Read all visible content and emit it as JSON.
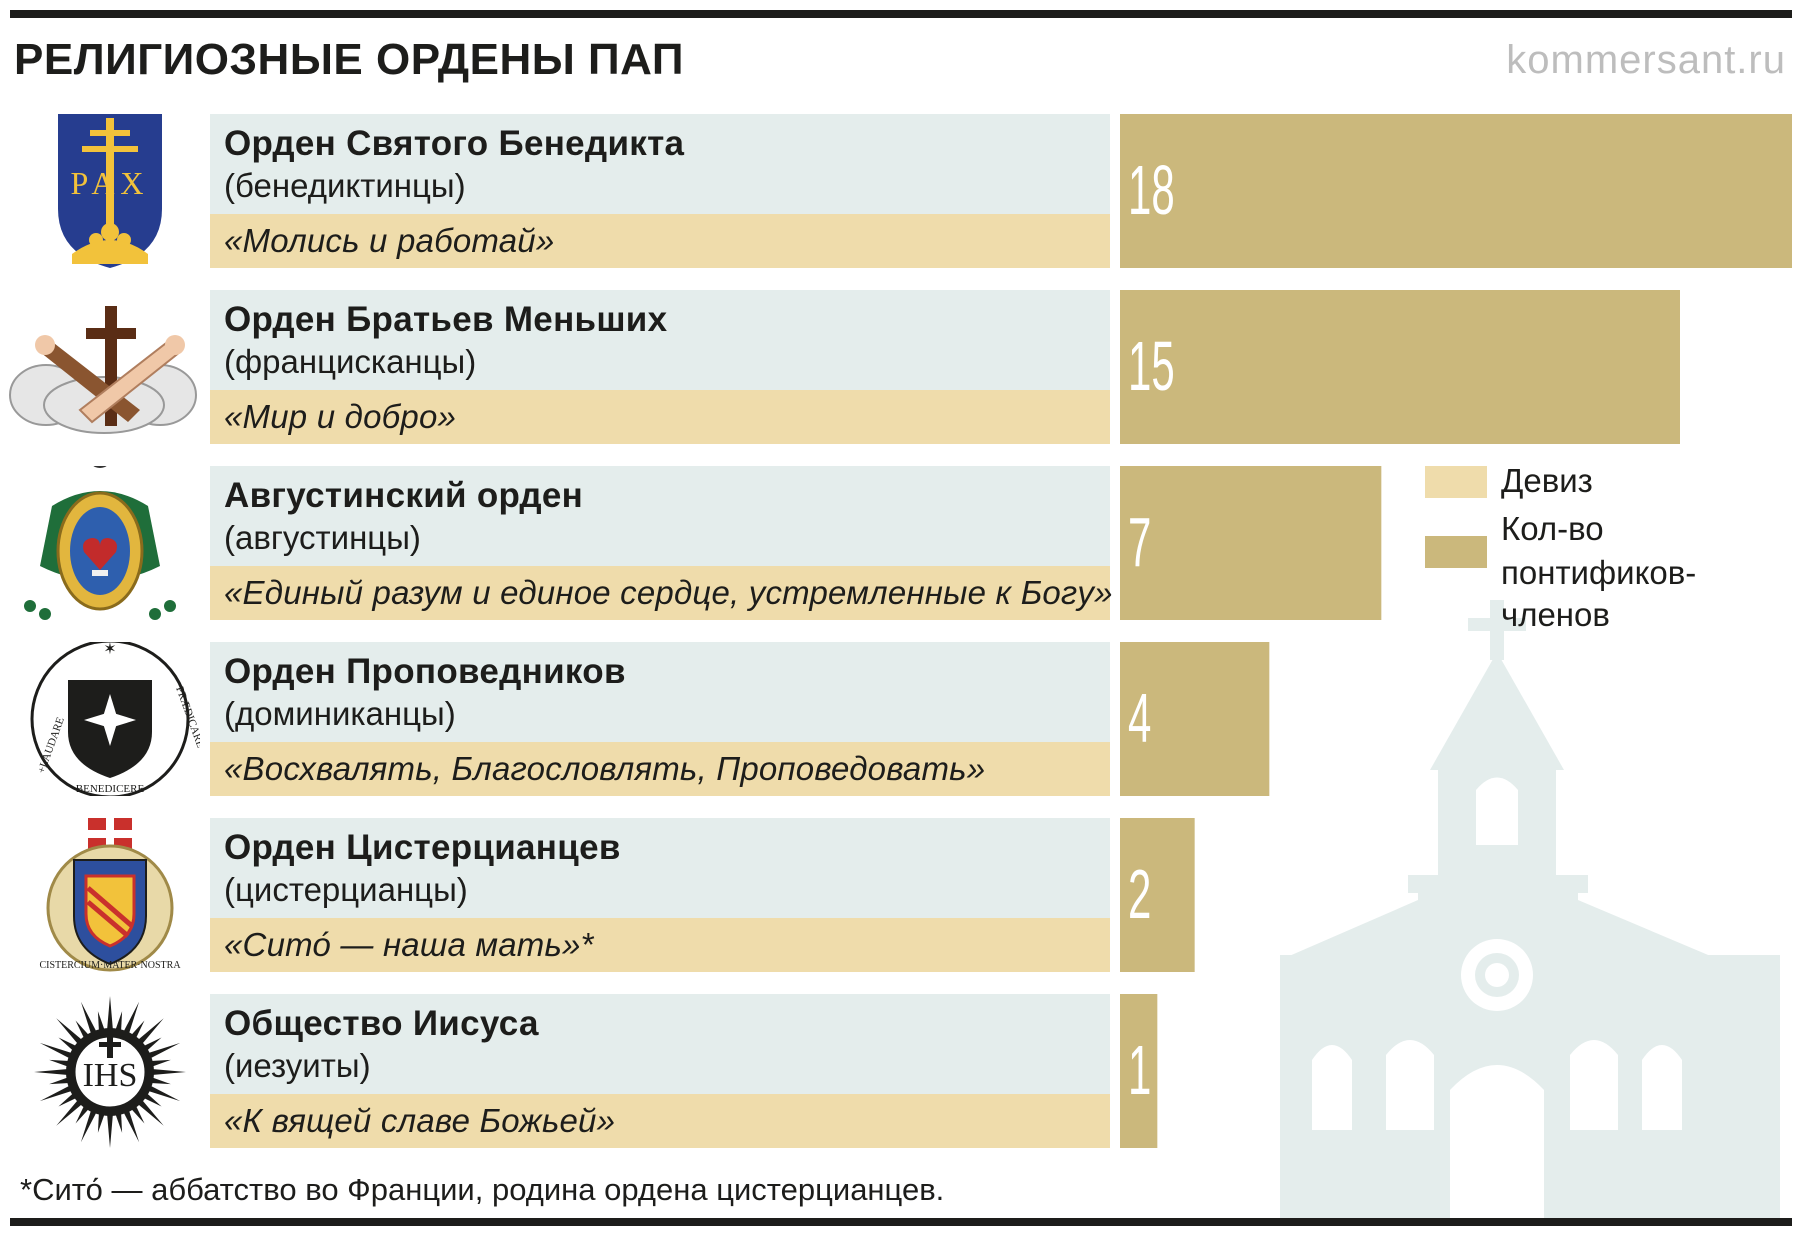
{
  "title": "РЕЛИГИОЗНЫЕ ОРДЕНЫ ПАП",
  "source": "kommersant.ru",
  "colors": {
    "name_bg": "#e4edec",
    "motto_bg": "#efdcab",
    "bar": "#cbb87c",
    "church": "#e4edec",
    "rule": "#1d1d1b"
  },
  "rows": [
    {
      "name": "Орден Святого Бенедикта",
      "sub": "(бенедиктинцы)",
      "motto": "«Молись и работай»",
      "emblem": "benedictine-pax-shield-icon",
      "emblem_text": "PAX"
    },
    {
      "name": "Орден Братьев Меньших",
      "sub": "(францисканцы)",
      "motto": "«Мир и добро»",
      "emblem": "franciscan-crossed-arms-icon"
    },
    {
      "name": "Августинский орден",
      "sub": "(августинцы)",
      "motto": "«Единый разум и единое сердце, устремленные к Богу»",
      "emblem": "augustinian-heart-crest-icon"
    },
    {
      "name": "Орден Проповедников",
      "sub": "(доминиканцы)",
      "motto": "«Восхвалять, Благословлять, Проповедовать»",
      "emblem": "dominican-shield-icon",
      "emblem_text": [
        "+LAUDARE",
        "PRÆDICARE",
        "BENEDICERE"
      ]
    },
    {
      "name": "Орден Цистерцианцев",
      "sub": "(цистерцианцы)",
      "motto": "«Сито́ — наша мать»*",
      "emblem": "cistercian-crest-icon",
      "emblem_text": "CISTERCIUM·MATER·NOSTRA"
    },
    {
      "name": "Общество Иисуса",
      "sub": "(иезуиты)",
      "motto": "«К вящей славе Божьей»",
      "emblem": "jesuit-ihs-sun-icon",
      "emblem_text": "IHS"
    }
  ],
  "chart_data": {
    "type": "bar",
    "orientation": "horizontal",
    "categories": [
      "Орден Святого Бенедикта",
      "Орден Братьев Меньших",
      "Августинский орден",
      "Орден Проповедников",
      "Орден Цистерцианцев",
      "Общество Иисуса"
    ],
    "values": [
      18,
      15,
      7,
      4,
      2,
      1
    ],
    "xlim": [
      0,
      18
    ],
    "legend": [
      {
        "label": "Девиз",
        "color": "#efdcab"
      },
      {
        "label": "Кол-во понтификов-членов",
        "color": "#cbb87c"
      }
    ],
    "legend_lines": [
      "Кол-во",
      "понтификов-членов"
    ],
    "legend_position": "right"
  },
  "footnote": "*Сито́ — аббатство во Франции, родина ордена цистерцианцев."
}
